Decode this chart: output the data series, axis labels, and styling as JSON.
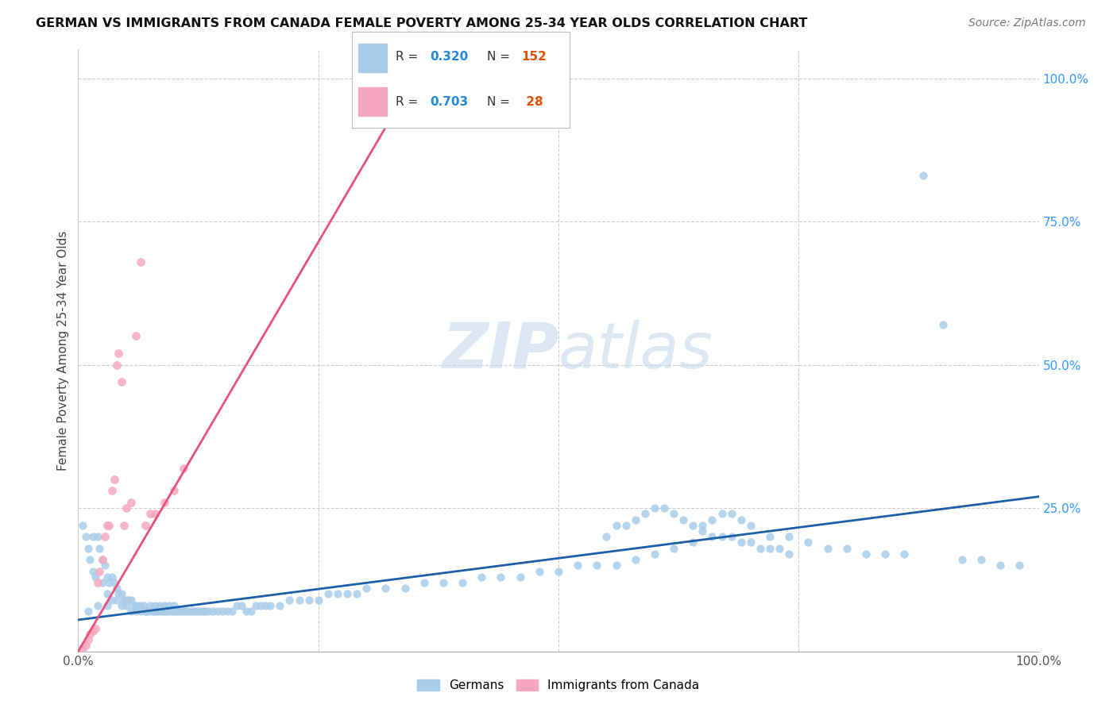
{
  "title": "GERMAN VS IMMIGRANTS FROM CANADA FEMALE POVERTY AMONG 25-34 YEAR OLDS CORRELATION CHART",
  "source": "Source: ZipAtlas.com",
  "ylabel": "Female Poverty Among 25-34 Year Olds",
  "xlim": [
    0.0,
    1.0
  ],
  "ylim": [
    0.0,
    1.0
  ],
  "ytick_right_labels": [
    "100.0%",
    "75.0%",
    "50.0%",
    "25.0%"
  ],
  "ytick_right_positions": [
    1.0,
    0.75,
    0.5,
    0.25
  ],
  "german_color": "#A8CCE8",
  "canada_color": "#F4A8C0",
  "german_line_color": "#1A5FA8",
  "canada_line_color": "#E8527A",
  "background_color": "#FFFFFF",
  "german_x": [
    0.005,
    0.008,
    0.01,
    0.012,
    0.015,
    0.015,
    0.018,
    0.02,
    0.022,
    0.025,
    0.025,
    0.028,
    0.03,
    0.03,
    0.032,
    0.035,
    0.035,
    0.038,
    0.04,
    0.04,
    0.042,
    0.045,
    0.045,
    0.048,
    0.05,
    0.05,
    0.052,
    0.055,
    0.055,
    0.058,
    0.06,
    0.06,
    0.062,
    0.065,
    0.065,
    0.068,
    0.07,
    0.07,
    0.072,
    0.075,
    0.075,
    0.078,
    0.08,
    0.08,
    0.082,
    0.085,
    0.085,
    0.088,
    0.09,
    0.09,
    0.092,
    0.095,
    0.095,
    0.098,
    0.1,
    0.1,
    0.102,
    0.105,
    0.108,
    0.11,
    0.112,
    0.115,
    0.118,
    0.12,
    0.122,
    0.125,
    0.128,
    0.13,
    0.132,
    0.135,
    0.14,
    0.145,
    0.15,
    0.155,
    0.16,
    0.165,
    0.17,
    0.175,
    0.18,
    0.185,
    0.19,
    0.195,
    0.2,
    0.21,
    0.22,
    0.23,
    0.24,
    0.25,
    0.26,
    0.27,
    0.28,
    0.29,
    0.3,
    0.32,
    0.34,
    0.36,
    0.38,
    0.4,
    0.42,
    0.44,
    0.46,
    0.48,
    0.5,
    0.52,
    0.54,
    0.56,
    0.58,
    0.6,
    0.62,
    0.64,
    0.65,
    0.66,
    0.67,
    0.68,
    0.69,
    0.7,
    0.72,
    0.74,
    0.76,
    0.78,
    0.8,
    0.82,
    0.84,
    0.86,
    0.88,
    0.9,
    0.92,
    0.94,
    0.96,
    0.98,
    0.55,
    0.56,
    0.57,
    0.58,
    0.59,
    0.6,
    0.61,
    0.62,
    0.63,
    0.64,
    0.65,
    0.66,
    0.67,
    0.68,
    0.69,
    0.7,
    0.71,
    0.72,
    0.73,
    0.74,
    0.01,
    0.02,
    0.03
  ],
  "german_y": [
    0.22,
    0.2,
    0.18,
    0.16,
    0.14,
    0.2,
    0.13,
    0.2,
    0.18,
    0.16,
    0.12,
    0.15,
    0.13,
    0.1,
    0.12,
    0.13,
    0.09,
    0.12,
    0.11,
    0.09,
    0.1,
    0.1,
    0.08,
    0.09,
    0.09,
    0.08,
    0.09,
    0.09,
    0.07,
    0.08,
    0.08,
    0.07,
    0.08,
    0.08,
    0.07,
    0.08,
    0.07,
    0.07,
    0.07,
    0.07,
    0.08,
    0.07,
    0.07,
    0.08,
    0.07,
    0.07,
    0.08,
    0.07,
    0.07,
    0.08,
    0.07,
    0.07,
    0.08,
    0.07,
    0.07,
    0.08,
    0.07,
    0.07,
    0.07,
    0.07,
    0.07,
    0.07,
    0.07,
    0.07,
    0.07,
    0.07,
    0.07,
    0.07,
    0.07,
    0.07,
    0.07,
    0.07,
    0.07,
    0.07,
    0.07,
    0.08,
    0.08,
    0.07,
    0.07,
    0.08,
    0.08,
    0.08,
    0.08,
    0.08,
    0.09,
    0.09,
    0.09,
    0.09,
    0.1,
    0.1,
    0.1,
    0.1,
    0.11,
    0.11,
    0.11,
    0.12,
    0.12,
    0.12,
    0.13,
    0.13,
    0.13,
    0.14,
    0.14,
    0.15,
    0.15,
    0.15,
    0.16,
    0.17,
    0.18,
    0.19,
    0.22,
    0.23,
    0.24,
    0.24,
    0.23,
    0.22,
    0.2,
    0.2,
    0.19,
    0.18,
    0.18,
    0.17,
    0.17,
    0.17,
    0.83,
    0.57,
    0.16,
    0.16,
    0.15,
    0.15,
    0.2,
    0.22,
    0.22,
    0.23,
    0.24,
    0.25,
    0.25,
    0.24,
    0.23,
    0.22,
    0.21,
    0.2,
    0.2,
    0.2,
    0.19,
    0.19,
    0.18,
    0.18,
    0.18,
    0.17,
    0.07,
    0.08,
    0.08
  ],
  "canada_x": [
    0.005,
    0.008,
    0.01,
    0.012,
    0.015,
    0.018,
    0.02,
    0.022,
    0.025,
    0.028,
    0.03,
    0.032,
    0.035,
    0.038,
    0.04,
    0.042,
    0.045,
    0.048,
    0.05,
    0.055,
    0.06,
    0.065,
    0.07,
    0.075,
    0.08,
    0.09,
    0.1,
    0.11
  ],
  "canada_y": [
    0.005,
    0.01,
    0.02,
    0.03,
    0.035,
    0.04,
    0.12,
    0.14,
    0.16,
    0.2,
    0.22,
    0.22,
    0.28,
    0.3,
    0.5,
    0.52,
    0.47,
    0.22,
    0.25,
    0.26,
    0.55,
    0.68,
    0.22,
    0.24,
    0.24,
    0.26,
    0.28,
    0.32
  ],
  "german_line_x": [
    0.0,
    1.0
  ],
  "german_line_y": [
    0.055,
    0.27
  ],
  "canada_line_x": [
    0.0,
    0.35
  ],
  "canada_line_y": [
    0.0,
    1.0
  ]
}
